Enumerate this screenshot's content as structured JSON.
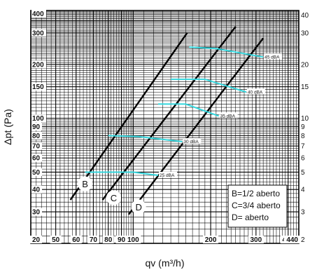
{
  "chart_data": {
    "type": "line",
    "xlabel": "qv (m³/h)",
    "ylabel": "Δpt (Pa)",
    "xscale": "log",
    "yscale": "log",
    "xlim": [
      40,
      440
    ],
    "ylim": [
      20,
      400
    ],
    "grid": true,
    "x_tick_labels": [
      "40",
      "50",
      "60",
      "70",
      "80",
      "90",
      "100",
      "200",
      "300",
      "400",
      "440"
    ],
    "y_tick_labels": [
      "20",
      "30",
      "40",
      "50",
      "60",
      "70",
      "80",
      "90",
      "100",
      "150",
      "200",
      "300",
      "400"
    ],
    "right_axis_ticks": [
      "2",
      "3",
      "4",
      "5",
      "6",
      "7",
      "8",
      "9",
      "10",
      "15",
      "20",
      "30",
      "40"
    ],
    "series": [
      {
        "name": "B",
        "color": "#000000",
        "points": [
          [
            57,
            35
          ],
          [
            162,
            300
          ]
        ]
      },
      {
        "name": "C",
        "color": "#000000",
        "points": [
          [
            76,
            35
          ],
          [
            250,
            325
          ]
        ]
      },
      {
        "name": "D",
        "color": "#000000",
        "points": [
          [
            96,
            29
          ],
          [
            320,
            280
          ]
        ]
      }
    ],
    "sound_lines": [
      {
        "label": "25 dBA",
        "color": "#33d6dd",
        "points": [
          [
            65,
            50
          ],
          [
            100,
            50
          ],
          [
            125,
            48
          ]
        ]
      },
      {
        "label": "30 dBA",
        "color": "#33d6dd",
        "points": [
          [
            80,
            80
          ],
          [
            105,
            79
          ],
          [
            155,
            74
          ]
        ]
      },
      {
        "label": "35 dBA",
        "color": "#33d6dd",
        "points": [
          [
            125,
            120
          ],
          [
            160,
            120
          ],
          [
            215,
            103
          ]
        ]
      },
      {
        "label": "40 dBA",
        "color": "#33d6dd",
        "points": [
          [
            140,
            165
          ],
          [
            190,
            165
          ],
          [
            275,
            140
          ]
        ]
      },
      {
        "label": "45 dBA",
        "color": "#33d6dd",
        "points": [
          [
            165,
            250
          ],
          [
            210,
            245
          ],
          [
            320,
            220
          ]
        ]
      }
    ],
    "curve_labels": [
      {
        "text": "B",
        "at": [
          65,
          43
        ]
      },
      {
        "text": "C",
        "at": [
          84,
          36
        ]
      },
      {
        "text": "D",
        "at": [
          105,
          32
        ]
      }
    ],
    "legend": [
      "B=1/2 aberto",
      "C=3/4 aberto",
      "D= aberto"
    ],
    "legend_position": "bottom-right"
  }
}
